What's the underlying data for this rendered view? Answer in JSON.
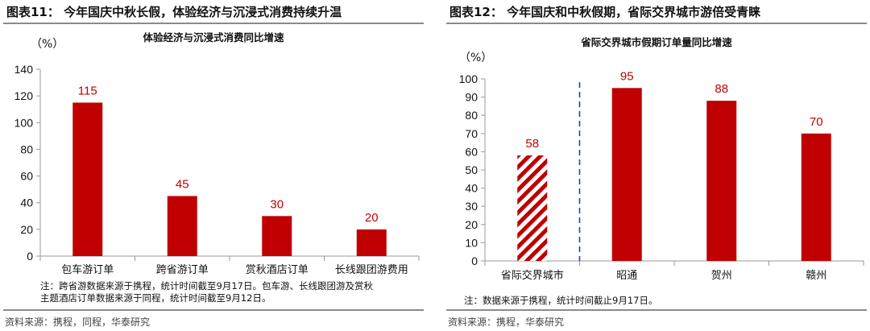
{
  "colors": {
    "bar": "#c00000",
    "divider": "#1f3fbf",
    "axis": "#999999",
    "rule": "#8a8a8a"
  },
  "left": {
    "fig_label": "图表11：",
    "fig_title": "今年国庆中秋长假，体验经济与沉浸式消费持续升温",
    "unit": "（%）",
    "note_lines": [
      "注：跨省游数据来源于携程，统计时间截至9月17日。包车游、长线跟团游及赏秋",
      "主题酒店订单数据来源于同程，统计时间截至9月12日。"
    ],
    "source": "资料来源：携程，同程，华泰研究",
    "chart_data": {
      "type": "bar",
      "title": "体验经济与沉浸式消费同比增速",
      "categories": [
        "包车游订单",
        "跨省游订单",
        "赏秋酒店订单",
        "长线跟团游费用"
      ],
      "values": [
        115,
        45,
        30,
        20
      ],
      "ylim": [
        0,
        140
      ],
      "yticks": [
        0,
        20,
        40,
        60,
        80,
        100,
        120,
        140
      ],
      "ylabel": "（%）",
      "grid": false
    }
  },
  "right": {
    "fig_label": "图表12：",
    "fig_title": "今年国庆和中秋假期，省际交界城市游倍受青睐",
    "unit": "（%）",
    "note_lines": [
      "注：数据来源于携程，统计时间截止9月17日。"
    ],
    "source": "资料来源：携程，华泰研究",
    "chart_data": {
      "type": "bar",
      "title": "省际交界城市假期订单量同比增速",
      "categories": [
        "省际交界城市",
        "昭通",
        "贺州",
        "赣州"
      ],
      "values": [
        58,
        95,
        88,
        70
      ],
      "ylim": [
        0,
        100
      ],
      "yticks": [
        0,
        10,
        20,
        30,
        40,
        50,
        60,
        70,
        80,
        90,
        100
      ],
      "ylabel": "（%）",
      "grid": false,
      "hatched_categories": [
        "省际交界城市"
      ],
      "divider_after_index": 0
    }
  }
}
